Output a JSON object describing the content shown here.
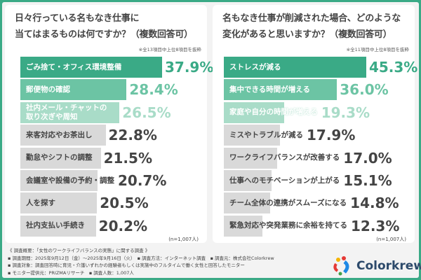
{
  "chart_data": [
    {
      "type": "bar",
      "orientation": "horizontal",
      "title": "日々行っている名もなき仕事に\n当てはまるものは何ですか？（複数回答可）",
      "note": "※全13項目中上位8項目を抜粋",
      "sample": "(n=1,007人)",
      "categories": [
        "ごみ捨て・オフィス環境整備",
        "郵便物の確認",
        "社内メール・チャットの\n取り次ぎや周知",
        "来客対応やお茶出し",
        "勤怠やシフトの調整",
        "会議室や設備の予約・調整",
        "人を探す",
        "社内支払い手続き"
      ],
      "values": [
        37.9,
        28.4,
        26.5,
        22.8,
        21.5,
        20.7,
        20.5,
        20.2
      ],
      "labels": [
        "37.9%",
        "28.4%",
        "26.5%",
        "22.8%",
        "21.5%",
        "20.7%",
        "20.5%",
        "20.2%"
      ]
    },
    {
      "type": "bar",
      "orientation": "horizontal",
      "title": "名もなき仕事が削減された場合、どのような\n変化があると思いますか？（複数回答可）",
      "note": "※全11項目中上位8項目を抜粋",
      "sample": "(n=1,007人)",
      "categories": [
        "ストレスが減る",
        "集中できる時間が増える",
        "家庭や自分の時間が増える",
        "ミスやトラブルが減る",
        "ワークライフバランスが改善する",
        "仕事へのモチベーションが上がる",
        "チーム全体の連携がスムーズになる",
        "緊急対応や突発業務に余裕を持てる"
      ],
      "values": [
        45.3,
        36.0,
        19.3,
        17.9,
        17.0,
        15.1,
        14.8,
        12.3
      ],
      "labels": [
        "45.3%",
        "36.0%",
        "19.3%",
        "17.9%",
        "17.0%",
        "15.1%",
        "14.8%",
        "12.3%"
      ]
    }
  ],
  "colors": {
    "rank1": "#3aaa86",
    "rank2": "#6cc4a4",
    "rank3": "#a9dcc8",
    "other": "#d9d9d9",
    "frame": "#3aaa86"
  },
  "footer": {
    "lines": [
      "《 調査概要：「女性のワークライフバランスの実態」に関する調査 》",
      "▪ 調査期間：2025年9月12日（金）～2025年9月16日（火）　▪ 調査方法：インターネット調査　▪ 調査元：株式会社Colorkrew",
      "▪ 調査対象：調査回答時に育児・介護いずれかの経験者もしくは実施中のフルタイムで働く女性と回答したモニター",
      "▪ モニター提供元：PRIZMAリサーチ　▪ 調査人数：1,007人"
    ]
  },
  "logo": {
    "text": "Colorkrew"
  }
}
